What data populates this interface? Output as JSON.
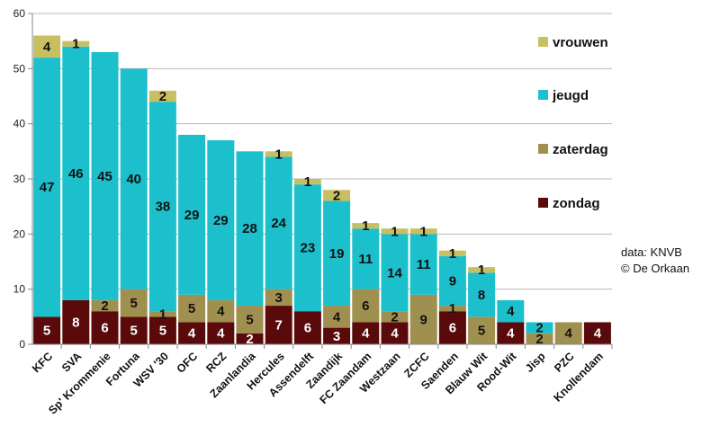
{
  "chart_data": {
    "type": "bar",
    "stacked": true,
    "title": "",
    "xlabel": "",
    "ylabel": "",
    "ylim": [
      0,
      60
    ],
    "yticks": [
      0,
      10,
      20,
      30,
      40,
      50,
      60
    ],
    "grid": "horizontal",
    "legend_position": "right",
    "categories": [
      "KFC",
      "SVA",
      "Sp' Krommenie",
      "Fortuna",
      "WSV '30",
      "OFC",
      "RCZ",
      "Zaanlandia",
      "Hercules",
      "Assendelft",
      "Zaandijk",
      "FC Zaandam",
      "Westzaan",
      "ZCFC",
      "Saenden",
      "Blauw Wit",
      "Rood-Wit",
      "Jisp",
      "PZC",
      "Knollendam"
    ],
    "series": [
      {
        "name": "zondag",
        "color": "#5a0a0a",
        "label_color": "#ffffff",
        "values": [
          5,
          8,
          6,
          5,
          5,
          4,
          4,
          2,
          7,
          6,
          3,
          4,
          4,
          0,
          6,
          0,
          4,
          0,
          0,
          4
        ],
        "labels": [
          "5",
          "8",
          "6",
          "5",
          "5",
          "4",
          "4",
          "2",
          "7",
          "6",
          "3",
          "4",
          "4",
          "",
          "6",
          "",
          "4",
          "",
          "",
          "4"
        ]
      },
      {
        "name": "zaterdag",
        "color": "#a09050",
        "label_color": "#111111",
        "values": [
          0,
          0,
          2,
          5,
          1,
          5,
          4,
          5,
          3,
          0,
          4,
          6,
          2,
          9,
          1,
          5,
          0,
          2,
          4,
          0
        ],
        "labels": [
          "",
          "",
          "2",
          "5",
          "1",
          "5",
          "4",
          "5",
          "3",
          "",
          "4",
          "6",
          "2",
          "9",
          "1",
          "5",
          "",
          "2",
          "4",
          ""
        ]
      },
      {
        "name": "jeugd",
        "color": "#1cc0cc",
        "label_color": "#111111",
        "values": [
          47,
          46,
          45,
          40,
          38,
          29,
          29,
          28,
          24,
          23,
          19,
          11,
          14,
          11,
          9,
          8,
          4,
          2,
          0,
          0
        ],
        "labels": [
          "47",
          "46",
          "45",
          "40",
          "38",
          "29",
          "29",
          "28",
          "24",
          "23",
          "19",
          "11",
          "14",
          "11",
          "9",
          "8",
          "4",
          "2",
          "",
          ""
        ]
      },
      {
        "name": "vrouwen",
        "color": "#c8c060",
        "label_color": "#111111",
        "values": [
          4,
          1,
          0,
          0,
          2,
          0,
          0,
          0,
          1,
          1,
          2,
          1,
          1,
          1,
          1,
          1,
          0,
          0,
          0,
          0
        ],
        "labels": [
          "4",
          "1",
          "",
          "",
          "2",
          "",
          "",
          "",
          "1",
          "1",
          "2",
          "1",
          "1",
          "1",
          "1",
          "1",
          "",
          "",
          "",
          ""
        ]
      }
    ],
    "legend_order": [
      "vrouwen",
      "jeugd",
      "zaterdag",
      "zondag"
    ],
    "annotations": [
      "data: KNVB",
      "© De Orkaan"
    ]
  }
}
